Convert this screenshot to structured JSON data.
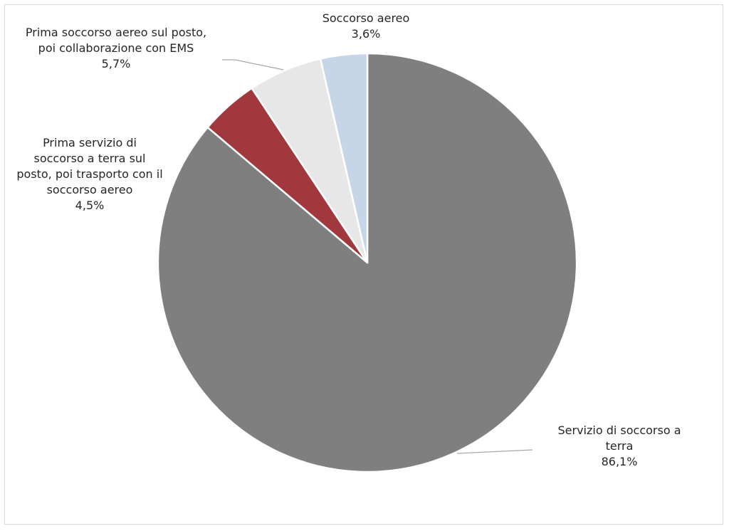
{
  "chart_data": {
    "type": "pie",
    "start_angle_deg": 0,
    "direction": "clockwise",
    "slices": [
      {
        "label_lines": [
          "Servizio di soccorso a",
          "terra"
        ],
        "value_label": "86,1%",
        "value": 86.1,
        "color": "#7f7f7f"
      },
      {
        "label_lines": [
          "Prima servizio di",
          "soccorso a terra sul",
          "posto, poi trasporto con il",
          "soccorso aereo"
        ],
        "value_label": "4,5%",
        "value": 4.5,
        "color": "#a0383d"
      },
      {
        "label_lines": [
          "Prima soccorso aereo sul posto,",
          "poi collaborazione con EMS"
        ],
        "value_label": "5,7%",
        "value": 5.7,
        "color": "#e7e7e7"
      },
      {
        "label_lines": [
          "Soccorso aereo"
        ],
        "value_label": "3,6%",
        "value": 3.6,
        "color": "#c6d6e8"
      }
    ],
    "data_labels": "outside-with-leader-lines",
    "legend": "none"
  }
}
